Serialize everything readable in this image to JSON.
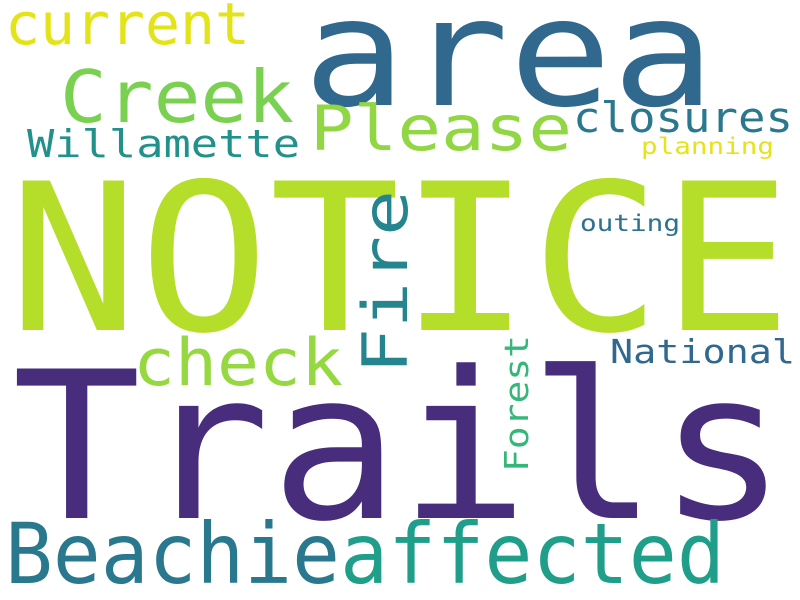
{
  "words": [
    {
      "text": "NOTICE",
      "color": "#b5de2b"
    },
    {
      "text": "Trails",
      "color": "#472d7b"
    },
    {
      "text": "area",
      "color": "#31688e"
    },
    {
      "text": "affected",
      "color": "#1f9e89"
    },
    {
      "text": "Beachie",
      "color": "#2a788e"
    },
    {
      "text": "Creek",
      "color": "#7ad151"
    },
    {
      "text": "Please",
      "color": "#90d743"
    },
    {
      "text": "check",
      "color": "#95d840"
    },
    {
      "text": "Fire",
      "color": "#25858e"
    },
    {
      "text": "current",
      "color": "#e3e418"
    },
    {
      "text": "Willamette",
      "color": "#21918c"
    },
    {
      "text": "closures",
      "color": "#2a788e"
    },
    {
      "text": "Forest",
      "color": "#35b779"
    },
    {
      "text": "National",
      "color": "#31688e"
    },
    {
      "text": "planning",
      "color": "#e5e419"
    },
    {
      "text": "outing",
      "color": "#2c728e"
    }
  ]
}
